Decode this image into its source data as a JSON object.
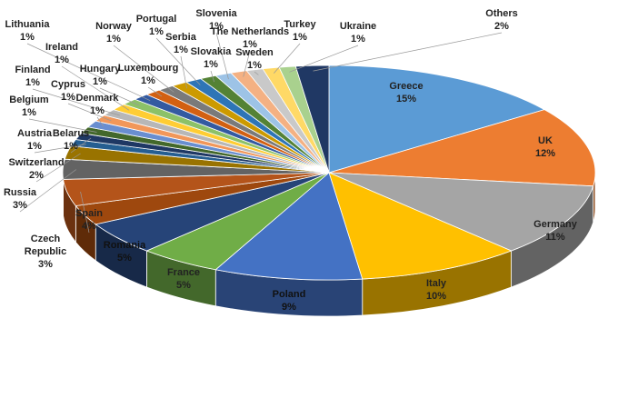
{
  "chart_data": {
    "type": "pie3d",
    "categories": [
      "Greece",
      "UK",
      "Germany",
      "Italy",
      "Poland",
      "France",
      "Romania",
      "Czech Republic",
      "Spain",
      "Russia",
      "Switzerland",
      "Austria",
      "Belarus",
      "Belgium",
      "Denmark",
      "Cyprus",
      "Finland",
      "Ireland",
      "Hungary",
      "Lithuania",
      "Luxembourg",
      "Norway",
      "Serbia",
      "Portugal",
      "Slovakia",
      "Slovenia",
      "The Netherlands",
      "Sweden",
      "Turkey",
      "Ukraine",
      "Others"
    ],
    "values": [
      15,
      12,
      11,
      10,
      9,
      5,
      5,
      3,
      4,
      3,
      2,
      1,
      1,
      1,
      1,
      1,
      1,
      1,
      1,
      1,
      1,
      1,
      1,
      1,
      1,
      1,
      1,
      1,
      1,
      1,
      2
    ],
    "value_labels": [
      "15%",
      "12%",
      "11%",
      "10%",
      "9%",
      "5%",
      "5%",
      "3%",
      "4%",
      "3%",
      "2%",
      "1%",
      "1%",
      "1%",
      "1%",
      "1%",
      "1%",
      "1%",
      "1%",
      "1%",
      "1%",
      "1%",
      "1%",
      "1%",
      "1%",
      "1%",
      "1%",
      "1%",
      "1%",
      "1%",
      "2%"
    ],
    "colors": [
      "#5b9bd5",
      "#ed7d31",
      "#a5a5a5",
      "#ffc000",
      "#4472c4",
      "#70ad47",
      "#264478",
      "#9e480e",
      "#b4541a",
      "#636363",
      "#997300",
      "#255e91",
      "#1f3864",
      "#43682b",
      "#698ed0",
      "#f1975a",
      "#b7b7b7",
      "#ffcd33",
      "#8cc168",
      "#335aa1",
      "#d26012",
      "#7a7a7a",
      "#cc9a00",
      "#2e75b6",
      "#548235",
      "#9dc3e6",
      "#f4b183",
      "#c9c9c9",
      "#ffd966",
      "#a9d18e",
      "#203864"
    ]
  }
}
